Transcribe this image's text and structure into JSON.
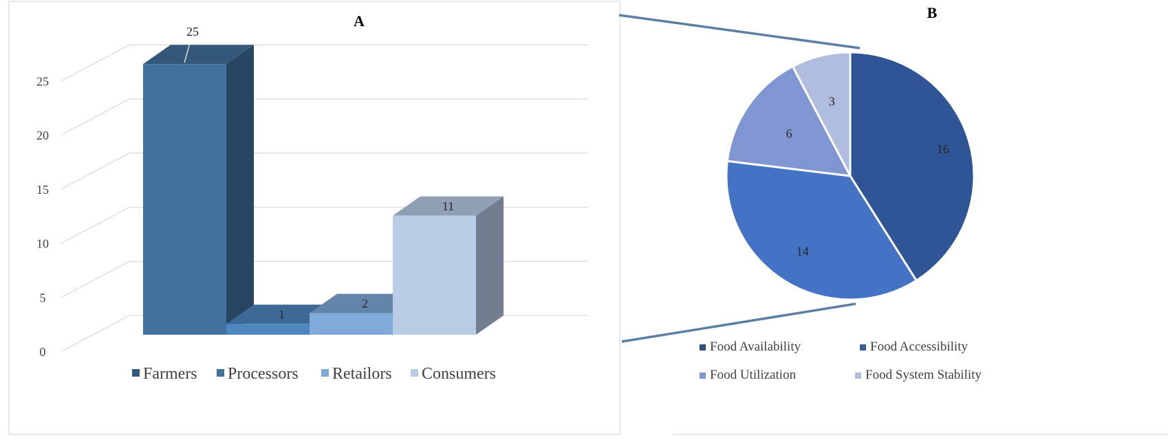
{
  "chart_data": [
    {
      "type": "bar",
      "title": "A",
      "xlabel": "",
      "ylabel": "",
      "ylim": [
        0,
        25
      ],
      "yticks": [
        0,
        5,
        10,
        15,
        20,
        25
      ],
      "grid": true,
      "legend_position": "bottom",
      "categories": [
        "Farmers",
        "Processors",
        "Retailors",
        "Consumers"
      ],
      "values": [
        25,
        1,
        2,
        11
      ],
      "colors": [
        "#41719c",
        "#4e86c0",
        "#7faad9",
        "#b8cce6"
      ],
      "legend_colors": [
        "#31587f",
        "#41719c",
        "#7faad9",
        "#b8cce6"
      ]
    },
    {
      "type": "pie",
      "title": "B",
      "legend_position": "bottom",
      "categories": [
        "Food Availability",
        "Food Accessibility",
        "Food Utilization",
        "Food System Stability"
      ],
      "values": [
        16,
        14,
        6,
        3
      ],
      "colors": [
        "#2f5597",
        "#4472c4",
        "#7f96d2",
        "#b1bddf"
      ],
      "legend_colors": [
        "#2f4f7f",
        "#3a5f9c",
        "#7f96d2",
        "#b1bddf"
      ]
    }
  ],
  "style": {
    "connector_color": "#5b7fa3",
    "frame_color": "#d9d9d9",
    "grid_color": "#d9d9d9",
    "text_color": "#262626",
    "axis_text_color": "#404040"
  }
}
